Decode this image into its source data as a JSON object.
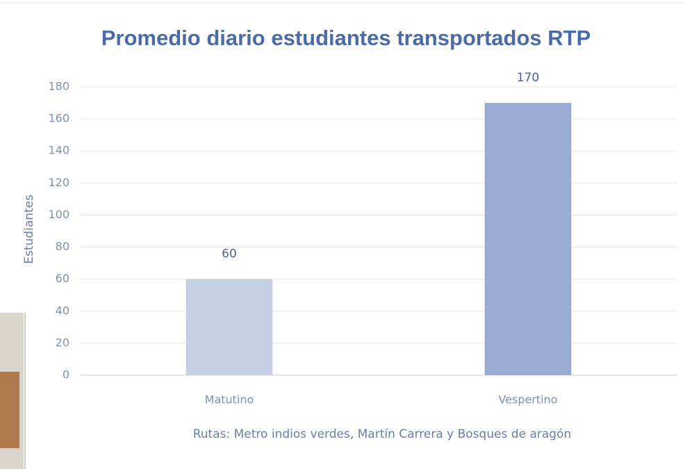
{
  "chart_data": {
    "type": "bar",
    "title": "Promedio diario estudiantes transportados RTP",
    "y_label": "Estudiantes",
    "x_label": "Rutas: Metro indios  verdes, Martín Carrera y Bosques de aragón",
    "categories": [
      "Matutino",
      "Vespertino"
    ],
    "values": [
      60,
      170
    ],
    "colors": [
      "#c5d0e6",
      "#9aabd4"
    ],
    "ylim": [
      0,
      180
    ],
    "yticks": [
      0,
      20,
      40,
      60,
      80,
      100,
      120,
      140,
      160,
      180
    ],
    "grid": true
  }
}
